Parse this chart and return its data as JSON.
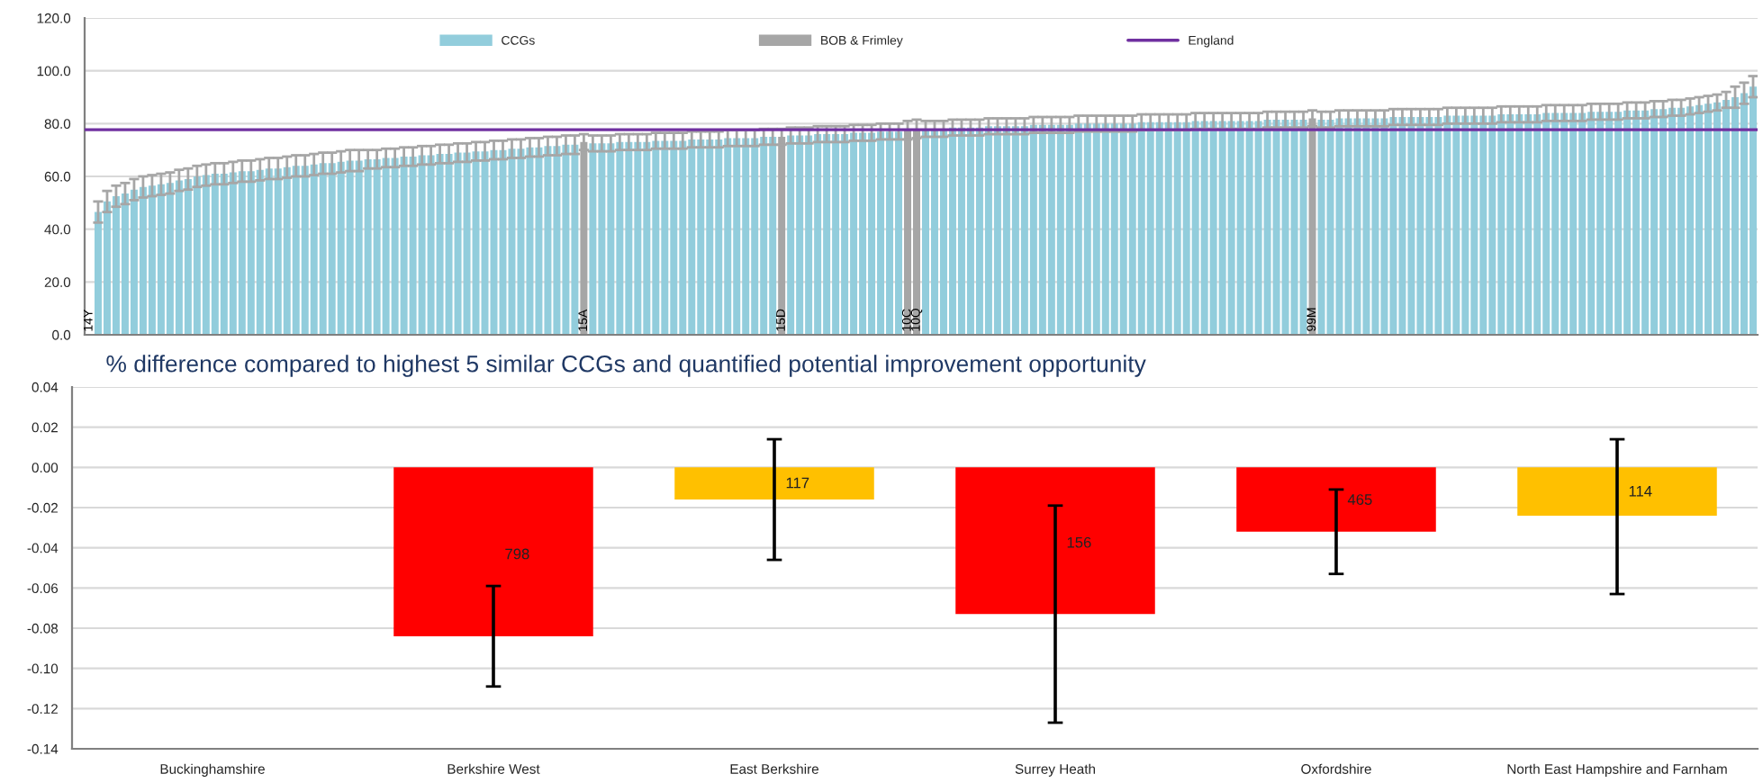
{
  "chart_data": [
    {
      "type": "bar",
      "categories": [
        "14Y",
        null,
        null,
        null,
        null,
        null,
        null,
        null,
        null,
        null,
        null,
        null,
        null,
        null,
        null,
        null,
        null,
        null,
        null,
        null,
        null,
        null,
        null,
        null,
        null,
        null,
        null,
        null,
        null,
        null,
        null,
        null,
        null,
        null,
        null,
        null,
        null,
        null,
        null,
        null,
        null,
        null,
        null,
        null,
        null,
        null,
        null,
        null,
        null,
        null,
        null,
        null,
        null,
        null,
        null,
        "15A",
        null,
        null,
        null,
        null,
        null,
        null,
        null,
        null,
        null,
        null,
        null,
        null,
        null,
        null,
        null,
        null,
        null,
        null,
        null,
        null,
        null,
        "15D",
        null,
        null,
        null,
        null,
        null,
        null,
        null,
        null,
        null,
        null,
        null,
        null,
        null,
        "10C",
        "10Q",
        null,
        null,
        null,
        null,
        null,
        null,
        null,
        null,
        null,
        null,
        null,
        null,
        null,
        null,
        null,
        null,
        null,
        null,
        null,
        null,
        null,
        null,
        null,
        null,
        null,
        null,
        null,
        null,
        null,
        null,
        null,
        null,
        null,
        null,
        null,
        null,
        null,
        null,
        null,
        null,
        null,
        null,
        null,
        "99M",
        null,
        null,
        null,
        null,
        null,
        null,
        null,
        null,
        null,
        null,
        null,
        null,
        null,
        null,
        null,
        null,
        null,
        null,
        null,
        null,
        null,
        null,
        null,
        null,
        null,
        null,
        null,
        null,
        null,
        null,
        null,
        null,
        null,
        null,
        null,
        null,
        null,
        null,
        null,
        null,
        null,
        null,
        null,
        null,
        null,
        null,
        null,
        null,
        null
      ],
      "series": [
        {
          "name": "CCGs",
          "color": "#92cddc",
          "values": [
            null,
            46.5,
            50.5,
            52.5,
            53.5,
            55,
            56,
            56.5,
            57,
            57.5,
            58.5,
            59,
            60,
            60.5,
            61,
            61,
            61.5,
            62,
            62,
            62.5,
            63,
            63,
            63.5,
            64,
            64,
            64.5,
            65,
            65,
            65.5,
            66,
            66,
            66.5,
            66.5,
            67,
            67,
            67.5,
            67.5,
            68,
            68,
            68.5,
            68.5,
            69,
            69,
            69.5,
            69.5,
            70,
            70,
            70.5,
            70.5,
            71,
            71,
            71.5,
            71.5,
            72,
            72,
            null,
            72.5,
            72.5,
            72.5,
            73,
            73,
            73,
            73,
            73.5,
            73.5,
            73.5,
            73.5,
            74,
            74,
            74,
            74,
            74.5,
            74.5,
            74.5,
            74.5,
            75,
            75,
            null,
            75.5,
            75.5,
            75.5,
            76,
            76,
            76,
            76,
            76.5,
            76.5,
            76.5,
            77,
            77,
            77,
            null,
            null,
            78,
            78,
            78,
            78.5,
            78.5,
            78.5,
            78.5,
            79,
            79,
            79,
            79,
            79,
            79.5,
            79.5,
            79.5,
            79.5,
            79.5,
            80,
            80,
            80,
            80,
            80,
            80,
            80,
            80.5,
            80.5,
            80.5,
            80.5,
            80.5,
            80.5,
            81,
            81,
            81,
            81,
            81,
            81,
            81,
            81,
            81.5,
            81.5,
            81.5,
            81.5,
            81.5,
            null,
            81.5,
            81.5,
            82,
            82,
            82,
            82,
            82,
            82,
            82.5,
            82.5,
            82.5,
            82.5,
            82.5,
            82.5,
            83,
            83,
            83,
            83,
            83,
            83,
            83.5,
            83.5,
            83.5,
            83.5,
            83.5,
            84,
            84,
            84,
            84,
            84,
            84.5,
            84.5,
            84.5,
            84.5,
            85,
            85,
            85,
            85.5,
            85.5,
            86,
            86,
            86.5,
            87,
            87.5,
            88,
            89,
            90,
            91.5,
            94
          ],
          "errors": [
            null,
            4,
            4,
            4,
            4,
            4,
            4,
            4,
            4,
            4,
            4,
            4,
            4,
            4,
            4,
            4,
            4,
            4,
            4,
            4,
            4,
            4,
            4,
            4,
            4,
            4,
            4,
            4,
            4,
            4,
            4,
            3.5,
            3.5,
            3.5,
            3.5,
            3.5,
            3.5,
            3.5,
            3.5,
            3.5,
            3.5,
            3.5,
            3.5,
            3.5,
            3.5,
            3.5,
            3.5,
            3.5,
            3.5,
            3.5,
            3.5,
            3.5,
            3.5,
            3.5,
            3.5,
            null,
            3,
            3,
            3,
            3,
            3,
            3,
            3,
            3,
            3,
            3,
            3,
            3,
            3,
            3,
            3,
            3,
            3,
            3,
            3,
            3,
            3,
            null,
            3,
            3,
            3,
            3,
            3,
            3,
            3,
            3,
            3,
            3,
            3,
            3,
            3,
            null,
            null,
            3,
            3,
            3,
            3,
            3,
            3,
            3,
            3,
            3,
            3,
            3,
            3,
            3,
            3,
            3,
            3,
            3,
            3,
            3,
            3,
            3,
            3,
            3,
            3,
            3,
            3,
            3,
            3,
            3,
            3,
            3,
            3,
            3,
            3,
            3,
            3,
            3,
            3,
            3,
            3,
            3,
            3,
            3,
            null,
            3,
            3,
            3,
            3,
            3,
            3,
            3,
            3,
            3,
            3,
            3,
            3,
            3,
            3,
            3,
            3,
            3,
            3,
            3,
            3,
            3,
            3,
            3,
            3,
            3,
            3,
            3,
            3,
            3,
            3,
            3,
            3,
            3,
            3,
            3,
            3,
            3,
            3,
            3,
            3,
            3,
            3,
            3,
            3,
            3,
            3,
            4,
            4,
            4
          ]
        },
        {
          "name": "BOB & Frimley",
          "color": "#a6a6a6",
          "values": [
            null,
            null,
            null,
            null,
            null,
            null,
            null,
            null,
            null,
            null,
            null,
            null,
            null,
            null,
            null,
            null,
            null,
            null,
            null,
            null,
            null,
            null,
            null,
            null,
            null,
            null,
            null,
            null,
            null,
            null,
            null,
            null,
            null,
            null,
            null,
            null,
            null,
            null,
            null,
            null,
            null,
            null,
            null,
            null,
            null,
            null,
            null,
            null,
            null,
            null,
            null,
            null,
            null,
            null,
            null,
            73,
            null,
            null,
            null,
            null,
            null,
            null,
            null,
            null,
            null,
            null,
            null,
            null,
            null,
            null,
            null,
            null,
            null,
            null,
            null,
            null,
            null,
            75,
            null,
            null,
            null,
            null,
            null,
            null,
            null,
            null,
            null,
            null,
            null,
            null,
            null,
            77.5,
            78,
            null,
            null,
            null,
            null,
            null,
            null,
            null,
            null,
            null,
            null,
            null,
            null,
            null,
            null,
            null,
            null,
            null,
            null,
            null,
            null,
            null,
            null,
            null,
            null,
            null,
            null,
            null,
            null,
            null,
            null,
            null,
            null,
            null,
            null,
            null,
            null,
            null,
            null,
            null,
            null,
            null,
            null,
            null,
            82,
            null,
            null,
            null,
            null,
            null,
            null,
            null,
            null,
            null,
            null,
            null,
            null,
            null,
            null,
            null,
            null,
            null,
            null,
            null,
            null,
            null,
            null,
            null,
            null,
            null,
            null,
            null,
            null,
            null,
            null,
            null,
            null,
            null,
            null,
            null,
            null,
            null,
            null,
            null,
            null,
            null,
            null,
            null,
            null,
            null,
            null,
            null,
            null,
            null
          ],
          "errors": [
            null,
            null,
            null,
            null,
            null,
            null,
            null,
            null,
            null,
            null,
            null,
            null,
            null,
            null,
            null,
            null,
            null,
            null,
            null,
            null,
            null,
            null,
            null,
            null,
            null,
            null,
            null,
            null,
            null,
            null,
            null,
            null,
            null,
            null,
            null,
            null,
            null,
            null,
            null,
            null,
            null,
            null,
            null,
            null,
            null,
            null,
            null,
            null,
            null,
            null,
            null,
            null,
            null,
            null,
            null,
            3,
            null,
            null,
            null,
            null,
            null,
            null,
            null,
            null,
            null,
            null,
            null,
            null,
            null,
            null,
            null,
            null,
            null,
            null,
            null,
            null,
            null,
            3,
            null,
            null,
            null,
            null,
            null,
            null,
            null,
            null,
            null,
            null,
            null,
            null,
            null,
            3.5,
            3.5,
            null,
            null,
            null,
            null,
            null,
            null,
            null,
            null,
            null,
            null,
            null,
            null,
            null,
            null,
            null,
            null,
            null,
            null,
            null,
            null,
            null,
            null,
            null,
            null,
            null,
            null,
            null,
            null,
            null,
            null,
            null,
            null,
            null,
            null,
            null,
            null,
            null,
            null,
            null,
            null,
            null,
            null,
            null,
            3,
            null,
            null,
            null,
            null,
            null,
            null,
            null,
            null,
            null,
            null,
            null,
            null,
            null,
            null,
            null,
            null,
            null,
            null,
            null,
            null,
            null,
            null,
            null,
            null,
            null,
            null,
            null,
            null,
            null,
            null,
            null,
            null,
            null,
            null,
            null,
            null,
            null,
            null,
            null,
            null,
            null,
            null,
            null,
            null,
            null,
            null,
            null,
            null,
            null
          ]
        }
      ],
      "ref_lines": [
        {
          "axis": "y",
          "value": 77.7,
          "label": "England",
          "color": "#7030a0"
        }
      ],
      "ylim": [
        0,
        120
      ],
      "yticks": [
        {
          "value": 0,
          "label": "0.0"
        },
        {
          "value": 20,
          "label": "20.0"
        },
        {
          "value": 40,
          "label": "40.0"
        },
        {
          "value": 60,
          "label": "60.0"
        },
        {
          "value": 80,
          "label": "80.0"
        },
        {
          "value": 100,
          "label": "100.0"
        },
        {
          "value": 120,
          "label": "120.0"
        }
      ],
      "grid": "y",
      "legend": "top"
    },
    {
      "type": "bar",
      "title": "% difference compared to highest 5 similar CCGs and quantified potential improvement opportunity",
      "categories": [
        "Buckinghamshire",
        "Berkshire West",
        "East Berkshire",
        "Surrey Heath",
        "Oxfordshire",
        "North East Hampshire and Farnham"
      ],
      "values": [
        null,
        -0.084,
        -0.016,
        -0.073,
        -0.032,
        -0.024
      ],
      "colors": [
        null,
        "#ff0000",
        "#ffc000",
        "#ff0000",
        "#ff0000",
        "#ffc000"
      ],
      "errors": [
        null,
        [
          -0.109,
          -0.059
        ],
        [
          -0.046,
          0.014
        ],
        [
          -0.127,
          -0.019
        ],
        [
          -0.053,
          -0.011
        ],
        [
          -0.063,
          0.014
        ]
      ],
      "annotations": [
        "798",
        "117",
        "156",
        "465",
        "114"
      ],
      "ylim": [
        -0.14,
        0.04
      ],
      "yticks": [
        {
          "value": -0.14,
          "label": "-0.14"
        },
        {
          "value": -0.12,
          "label": "-0.12"
        },
        {
          "value": -0.1,
          "label": "-0.10"
        },
        {
          "value": -0.08,
          "label": "-0.08"
        },
        {
          "value": -0.06,
          "label": "-0.06"
        },
        {
          "value": -0.04,
          "label": "-0.04"
        },
        {
          "value": -0.02,
          "label": "-0.02"
        },
        {
          "value": 0,
          "label": "0.00"
        },
        {
          "value": 0.02,
          "label": "0.02"
        },
        {
          "value": 0.04,
          "label": "0.04"
        }
      ],
      "grid": "y"
    }
  ]
}
